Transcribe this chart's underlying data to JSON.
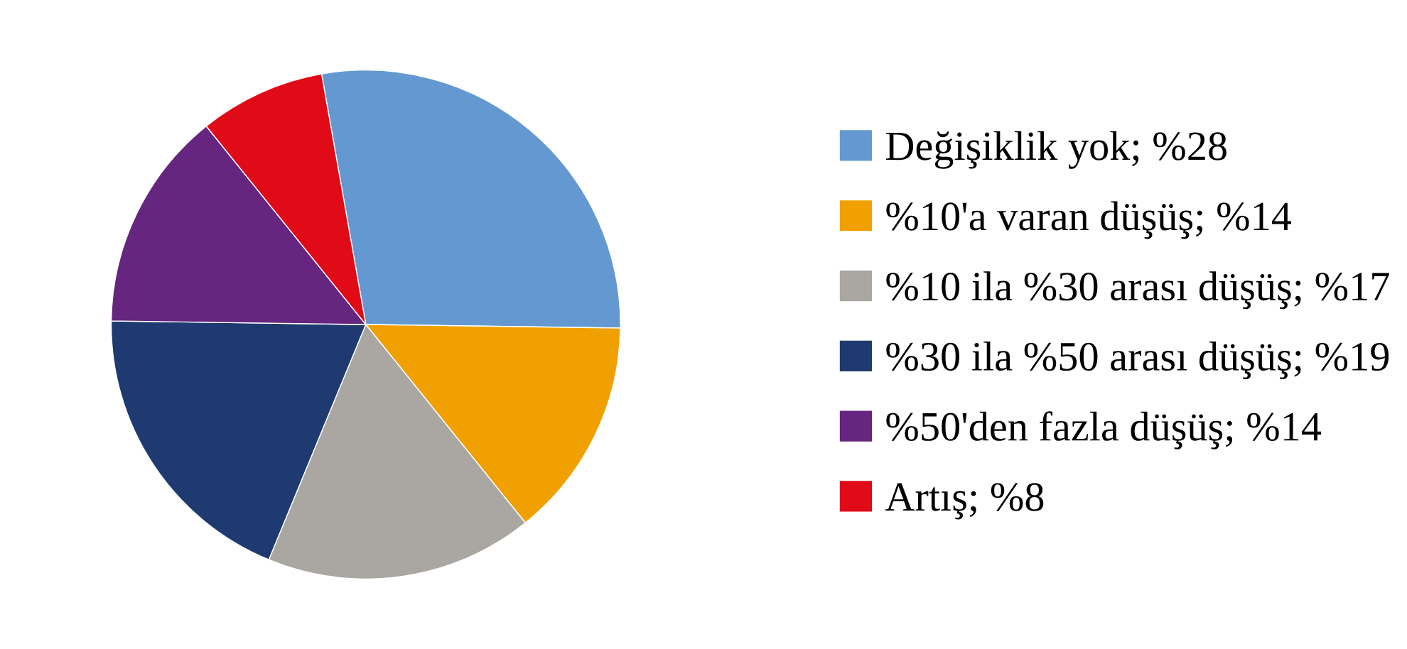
{
  "chart_data": {
    "type": "pie",
    "categories": [
      "Değişiklik yok; %28",
      "%10'a varan düşüş; %14",
      "%10 ila %30 arası düşüş; %17",
      "%30 ila %50 arası düşüş; %19",
      "%50'den fazla düşüş; %14",
      "Artış; %8"
    ],
    "values": [
      28,
      14,
      17,
      19,
      14,
      8
    ],
    "colors": [
      "#6399d0",
      "#f0a000",
      "#aaa7a3",
      "#1f3a70",
      "#66257f",
      "#e00b17"
    ],
    "legend": "right"
  }
}
